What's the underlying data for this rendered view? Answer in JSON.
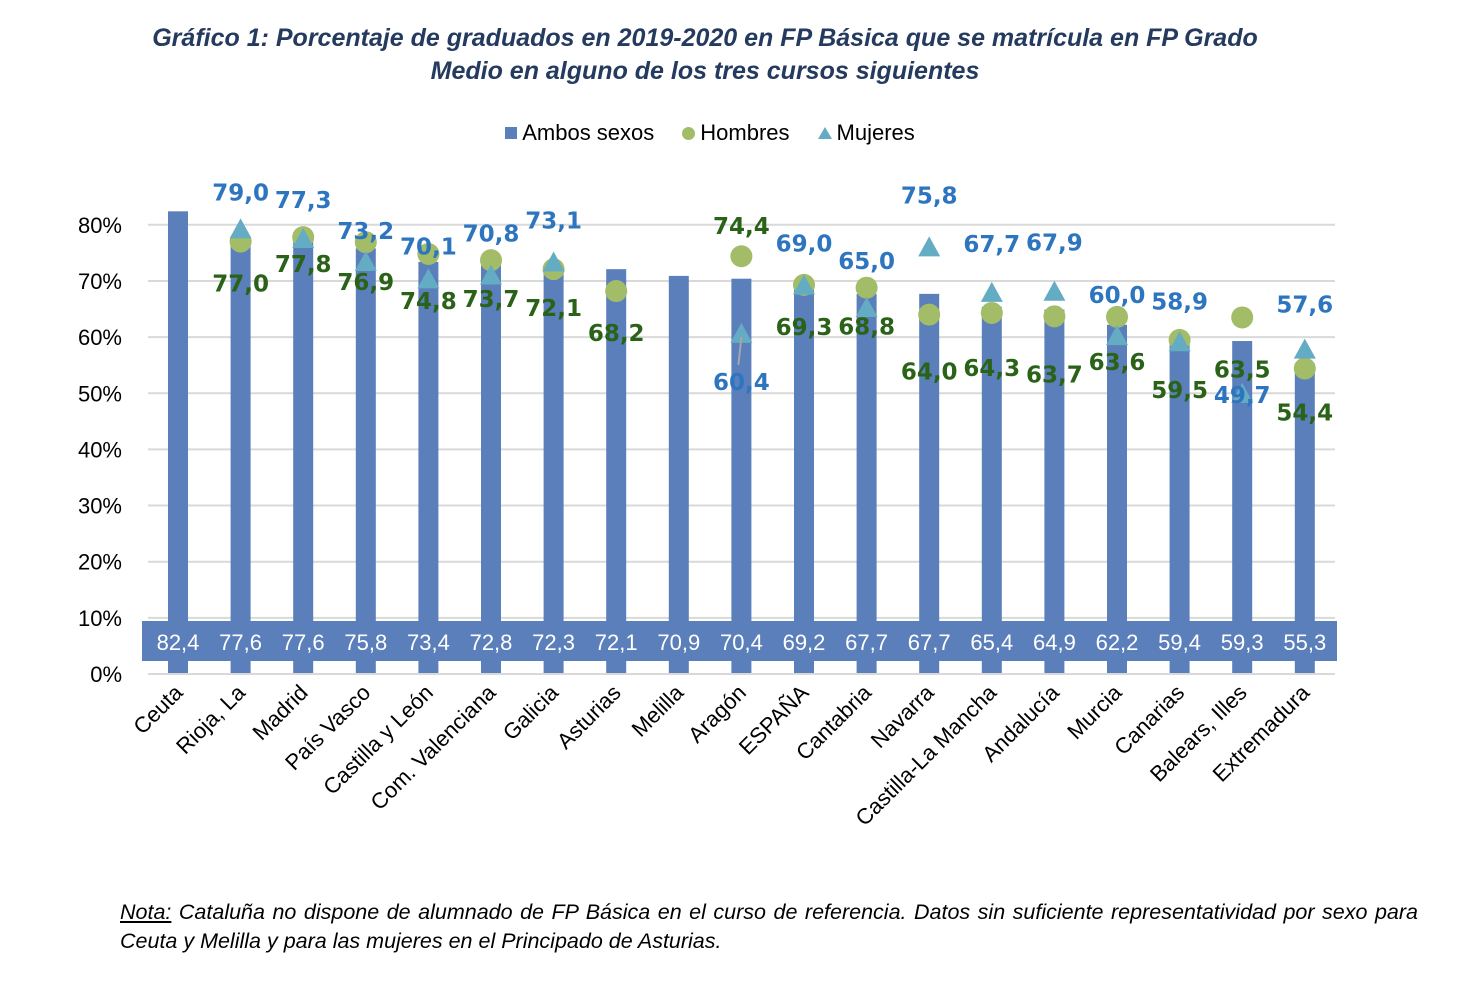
{
  "title": {
    "line1": "Gráfico 1: Porcentaje de graduados en 2019-2020 en FP Básica que se matrícula en FP Grado",
    "line2": "Medio en alguno de los tres cursos siguientes"
  },
  "legend": [
    {
      "label": "Ambos sexos",
      "marker": "square",
      "color": "#5b7fbb"
    },
    {
      "label": "Hombres",
      "marker": "circle",
      "color": "#a2bc68"
    },
    {
      "label": "Mujeres",
      "marker": "triangle",
      "color": "#64abc4"
    }
  ],
  "note": {
    "label": "Nota:",
    "text": " Cataluña no dispone de alumnado de FP Básica en el curso de referencia. Datos sin suficiente representatividad por sexo para Ceuta y Melilla y para las mujeres en el Principado de Asturias."
  },
  "chart_data": {
    "type": "bar",
    "title": "Gráfico 1: Porcentaje de graduados en 2019-2020 en FP Básica que se matrícula en FP Grado Medio en alguno de los tres cursos siguientes",
    "xlabel": "",
    "ylabel": "",
    "ylim": [
      0,
      85
    ],
    "yticks": [
      0,
      10,
      20,
      30,
      40,
      50,
      60,
      70,
      80
    ],
    "ytick_labels": [
      "0%",
      "10%",
      "20%",
      "30%",
      "40%",
      "50%",
      "60%",
      "70%",
      "80%"
    ],
    "grid": true,
    "legend_position": "top",
    "categories": [
      "Ceuta",
      "Rioja, La",
      "Madrid",
      "País Vasco",
      "Castilla y León",
      "Com. Valenciana",
      "Galicia",
      "Asturias",
      "Melilla",
      "Aragón",
      "ESPAÑA",
      "Cantabria",
      "Navarra",
      "Castilla-La Mancha",
      "Andalucía",
      "Murcia",
      "Canarias",
      "Balears, Illes",
      "Extremadura"
    ],
    "series": [
      {
        "name": "Ambos sexos",
        "kind": "bar",
        "color": "#5b7fbb",
        "values": [
          82.4,
          77.6,
          77.6,
          75.8,
          73.4,
          72.8,
          72.3,
          72.1,
          70.9,
          70.4,
          69.2,
          67.7,
          67.7,
          65.4,
          64.9,
          62.2,
          59.4,
          59.3,
          55.3
        ],
        "labels": [
          "82,4",
          "77,6",
          "77,6",
          "75,8",
          "73,4",
          "72,8",
          "72,3",
          "72,1",
          "70,9",
          "70,4",
          "69,2",
          "67,7",
          "67,7",
          "65,4",
          "64,9",
          "62,2",
          "59,4",
          "59,3",
          "55,3"
        ]
      },
      {
        "name": "Hombres",
        "kind": "circle",
        "color": "#a2bc68",
        "label_color": "#2a6218",
        "values": [
          null,
          77.0,
          77.8,
          76.9,
          74.8,
          73.7,
          72.1,
          68.2,
          null,
          74.4,
          69.3,
          68.8,
          64.0,
          64.3,
          63.7,
          63.6,
          59.5,
          63.5,
          54.4
        ],
        "labels": [
          null,
          "77,0",
          "77,8",
          "76,9",
          "74,8",
          "73,7",
          "72,1",
          "68,2",
          null,
          "74,4",
          "69,3",
          "68,8",
          "64,0",
          "64,3",
          "63,7",
          "63,6",
          "59,5",
          "63,5",
          "54,4"
        ]
      },
      {
        "name": "Mujeres",
        "kind": "triangle",
        "color": "#64abc4",
        "label_color": "#2e75c0",
        "values": [
          null,
          79.0,
          77.3,
          73.2,
          70.1,
          70.8,
          73.1,
          null,
          null,
          60.4,
          69.0,
          65.0,
          75.8,
          67.7,
          67.9,
          60.0,
          58.9,
          49.7,
          57.6
        ],
        "labels": [
          null,
          "79,0",
          "77,3",
          "73,2",
          "70,1",
          "70,8",
          "73,1",
          null,
          null,
          "60,4",
          "69,0",
          "65,0",
          "75,8",
          "67,7",
          "67,9",
          "60,0",
          "58,9",
          "49,7",
          "57,6"
        ]
      }
    ]
  }
}
